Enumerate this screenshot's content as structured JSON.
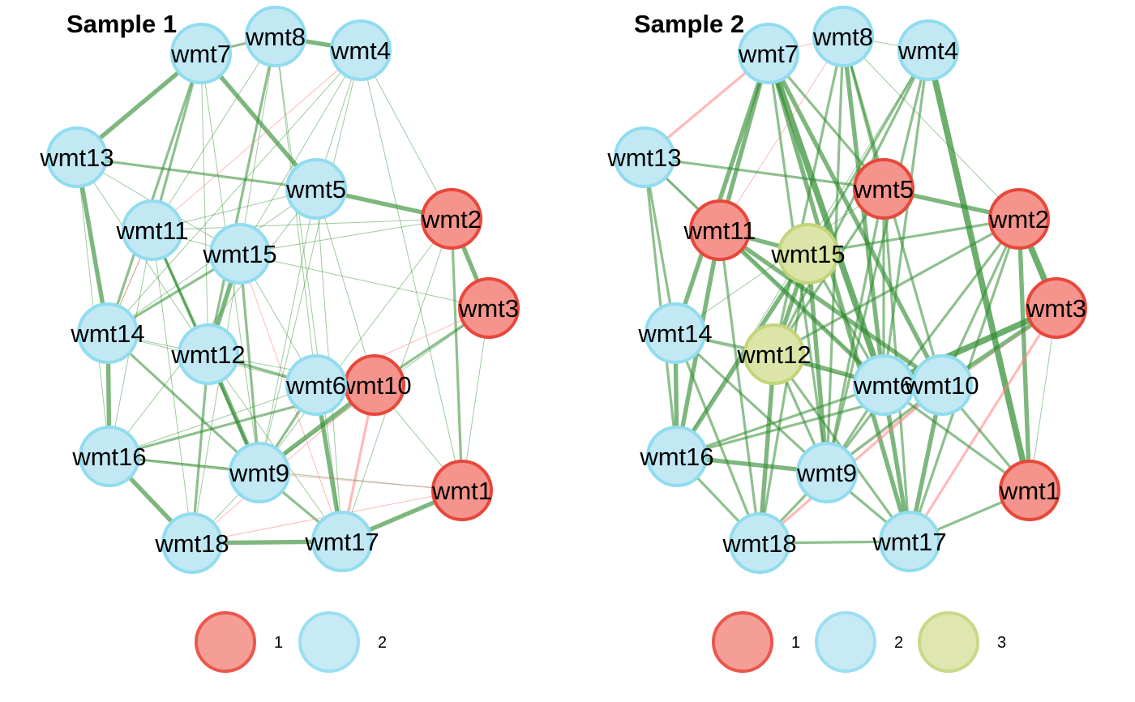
{
  "colors": {
    "group1_fill": "#F4948C",
    "group1_stroke": "#E8473A",
    "group2_fill": "#C2E8F4",
    "group2_stroke": "#91DCEF",
    "group3_fill": "#DCE4A8",
    "group3_stroke": "#C3D57A",
    "edge_positive": "#2E8B2E",
    "edge_negative": "#FF7F7F"
  },
  "panels": [
    {
      "title": "Sample 1",
      "groups": {
        "wmt1": "1",
        "wmt2": "1",
        "wmt3": "1",
        "wmt10": "1",
        "wmt4": "2",
        "wmt5": "2",
        "wmt6": "2",
        "wmt7": "2",
        "wmt8": "2",
        "wmt9": "2",
        "wmt11": "2",
        "wmt12": "2",
        "wmt13": "2",
        "wmt14": "2",
        "wmt15": "2",
        "wmt16": "2",
        "wmt17": "2",
        "wmt18": "2"
      },
      "edges": [
        [
          "wmt7",
          "wmt13",
          "pos",
          3
        ],
        [
          "wmt7",
          "wmt8",
          "pos",
          2
        ],
        [
          "wmt8",
          "wmt4",
          "pos",
          3
        ],
        [
          "wmt7",
          "wmt5",
          "pos",
          3
        ],
        [
          "wmt7",
          "wmt11",
          "pos",
          2
        ],
        [
          "wmt7",
          "wmt14",
          "pos",
          2
        ],
        [
          "wmt7",
          "wmt12",
          "pos",
          1
        ],
        [
          "wmt7",
          "wmt9",
          "pos",
          1
        ],
        [
          "wmt8",
          "wmt11",
          "pos",
          1
        ],
        [
          "wmt8",
          "wmt15",
          "pos",
          1
        ],
        [
          "wmt8",
          "wmt12",
          "pos",
          2
        ],
        [
          "wmt8",
          "wmt6",
          "pos",
          1
        ],
        [
          "wmt8",
          "wmt17",
          "pos",
          1
        ],
        [
          "wmt4",
          "wmt15",
          "pos",
          1
        ],
        [
          "wmt4",
          "wmt2",
          "pos",
          1
        ],
        [
          "wmt4",
          "wmt5",
          "pos",
          1
        ],
        [
          "wmt4",
          "wmt9",
          "pos",
          1
        ],
        [
          "wmt4",
          "wmt1",
          "pos",
          1
        ],
        [
          "wmt4",
          "wmt14",
          "pos",
          1
        ],
        [
          "wmt4",
          "wmt11",
          "neg",
          1
        ],
        [
          "wmt13",
          "wmt14",
          "pos",
          3
        ],
        [
          "wmt13",
          "wmt5",
          "pos",
          2
        ],
        [
          "wmt13",
          "wmt16",
          "pos",
          1
        ],
        [
          "wmt13",
          "wmt12",
          "pos",
          1
        ],
        [
          "wmt13",
          "wmt15",
          "pos",
          1
        ],
        [
          "wmt5",
          "wmt2",
          "pos",
          3
        ],
        [
          "wmt5",
          "wmt11",
          "pos",
          1
        ],
        [
          "wmt5",
          "wmt14",
          "pos",
          1
        ],
        [
          "wmt5",
          "wmt9",
          "pos",
          1
        ],
        [
          "wmt5",
          "wmt17",
          "pos",
          1
        ],
        [
          "wmt5",
          "wmt10",
          "pos",
          1
        ],
        [
          "wmt5",
          "wmt16",
          "pos",
          1
        ],
        [
          "wmt2",
          "wmt3",
          "pos",
          3
        ],
        [
          "wmt2",
          "wmt1",
          "pos",
          2
        ],
        [
          "wmt2",
          "wmt15",
          "pos",
          1
        ],
        [
          "wmt2",
          "wmt11",
          "pos",
          1
        ],
        [
          "wmt2",
          "wmt9",
          "pos",
          1
        ],
        [
          "wmt2",
          "wmt17",
          "pos",
          1
        ],
        [
          "wmt11",
          "wmt14",
          "pos",
          1
        ],
        [
          "wmt11",
          "wmt12",
          "pos",
          2
        ],
        [
          "wmt11",
          "wmt9",
          "pos",
          2
        ],
        [
          "wmt11",
          "wmt18",
          "pos",
          1
        ],
        [
          "wmt11",
          "wmt16",
          "pos",
          1
        ],
        [
          "wmt11",
          "wmt15",
          "pos",
          1
        ],
        [
          "wmt15",
          "wmt12",
          "pos",
          3
        ],
        [
          "wmt15",
          "wmt9",
          "pos",
          2
        ],
        [
          "wmt15",
          "wmt14",
          "pos",
          2
        ],
        [
          "wmt15",
          "wmt6",
          "pos",
          1
        ],
        [
          "wmt15",
          "wmt18",
          "pos",
          1
        ],
        [
          "wmt15",
          "wmt17",
          "neg",
          1
        ],
        [
          "wmt15",
          "wmt3",
          "pos",
          1
        ],
        [
          "wmt3",
          "wmt10",
          "pos",
          2
        ],
        [
          "wmt3",
          "wmt1",
          "pos",
          1
        ],
        [
          "wmt3",
          "wmt9",
          "pos",
          1
        ],
        [
          "wmt3",
          "wmt6",
          "neg",
          1
        ],
        [
          "wmt14",
          "wmt12",
          "pos",
          1
        ],
        [
          "wmt14",
          "wmt16",
          "pos",
          3
        ],
        [
          "wmt14",
          "wmt9",
          "pos",
          2
        ],
        [
          "wmt14",
          "wmt6",
          "pos",
          1
        ],
        [
          "wmt14",
          "wmt11",
          "neg",
          1
        ],
        [
          "wmt12",
          "wmt6",
          "pos",
          2
        ],
        [
          "wmt12",
          "wmt9",
          "pos",
          3
        ],
        [
          "wmt12",
          "wmt18",
          "pos",
          2
        ],
        [
          "wmt12",
          "wmt17",
          "pos",
          1
        ],
        [
          "wmt12",
          "wmt10",
          "pos",
          1
        ],
        [
          "wmt6",
          "wmt10",
          "pos",
          3
        ],
        [
          "wmt6",
          "wmt17",
          "pos",
          3
        ],
        [
          "wmt6",
          "wmt9",
          "pos",
          2
        ],
        [
          "wmt6",
          "wmt16",
          "pos",
          1
        ],
        [
          "wmt10",
          "wmt9",
          "pos",
          3
        ],
        [
          "wmt10",
          "wmt17",
          "neg",
          2
        ],
        [
          "wmt10",
          "wmt1",
          "pos",
          1
        ],
        [
          "wmt10",
          "wmt16",
          "pos",
          2
        ],
        [
          "wmt10",
          "wmt18",
          "neg",
          1
        ],
        [
          "wmt16",
          "wmt9",
          "pos",
          2
        ],
        [
          "wmt16",
          "wmt18",
          "pos",
          3
        ],
        [
          "wmt9",
          "wmt17",
          "pos",
          2
        ],
        [
          "wmt9",
          "wmt18",
          "pos",
          1
        ],
        [
          "wmt18",
          "wmt17",
          "pos",
          3
        ],
        [
          "wmt17",
          "wmt1",
          "pos",
          3
        ],
        [
          "wmt18",
          "wmt1",
          "neg",
          1
        ],
        [
          "wmt16",
          "wmt1",
          "pos",
          1
        ],
        [
          "wmt9",
          "wmt1",
          "neg",
          1
        ]
      ]
    },
    {
      "title": "Sample 2",
      "groups": {
        "wmt1": "1",
        "wmt2": "1",
        "wmt3": "1",
        "wmt5": "1",
        "wmt11": "1",
        "wmt4": "2",
        "wmt6": "2",
        "wmt7": "2",
        "wmt8": "2",
        "wmt9": "2",
        "wmt10": "2",
        "wmt13": "2",
        "wmt14": "2",
        "wmt16": "2",
        "wmt17": "2",
        "wmt18": "2",
        "wmt12": "3",
        "wmt15": "3"
      },
      "edges": [
        [
          "wmt7",
          "wmt13",
          "neg",
          2
        ],
        [
          "wmt7",
          "wmt8",
          "neg",
          1
        ],
        [
          "wmt8",
          "wmt4",
          "pos",
          1
        ],
        [
          "wmt7",
          "wmt11",
          "pos",
          3
        ],
        [
          "wmt7",
          "wmt14",
          "pos",
          3
        ],
        [
          "wmt7",
          "wmt6",
          "pos",
          4
        ],
        [
          "wmt7",
          "wmt17",
          "pos",
          3
        ],
        [
          "wmt7",
          "wmt10",
          "pos",
          3
        ],
        [
          "wmt7",
          "wmt5",
          "pos",
          2
        ],
        [
          "wmt7",
          "wmt9",
          "pos",
          2
        ],
        [
          "wmt8",
          "wmt5",
          "pos",
          2
        ],
        [
          "wmt8",
          "wmt6",
          "pos",
          3
        ],
        [
          "wmt8",
          "wmt10",
          "pos",
          2
        ],
        [
          "wmt8",
          "wmt2",
          "pos",
          1
        ],
        [
          "wmt8",
          "wmt11",
          "neg",
          1
        ],
        [
          "wmt8",
          "wmt9",
          "pos",
          2
        ],
        [
          "wmt8",
          "wmt12",
          "pos",
          2
        ],
        [
          "wmt4",
          "wmt1",
          "pos",
          4
        ],
        [
          "wmt4",
          "wmt6",
          "pos",
          2
        ],
        [
          "wmt4",
          "wmt15",
          "pos",
          2
        ],
        [
          "wmt4",
          "wmt12",
          "pos",
          2
        ],
        [
          "wmt4",
          "wmt9",
          "pos",
          2
        ],
        [
          "wmt4",
          "wmt16",
          "pos",
          1
        ],
        [
          "wmt13",
          "wmt5",
          "pos",
          2
        ],
        [
          "wmt13",
          "wmt14",
          "pos",
          2
        ],
        [
          "wmt13",
          "wmt11",
          "pos",
          2
        ],
        [
          "wmt13",
          "wmt16",
          "pos",
          2
        ],
        [
          "wmt13",
          "wmt6",
          "pos",
          1
        ],
        [
          "wmt5",
          "wmt2",
          "pos",
          3
        ],
        [
          "wmt5",
          "wmt6",
          "pos",
          2
        ],
        [
          "wmt5",
          "wmt12",
          "pos",
          2
        ],
        [
          "wmt5",
          "wmt9",
          "pos",
          2
        ],
        [
          "wmt5",
          "wmt17",
          "pos",
          2
        ],
        [
          "wmt5",
          "wmt14",
          "pos",
          1
        ],
        [
          "wmt11",
          "wmt15",
          "pos",
          3
        ],
        [
          "wmt11",
          "wmt16",
          "pos",
          3
        ],
        [
          "wmt11",
          "wmt6",
          "pos",
          3
        ],
        [
          "wmt11",
          "wmt10",
          "pos",
          3
        ],
        [
          "wmt11",
          "wmt18",
          "pos",
          2
        ],
        [
          "wmt15",
          "wmt12",
          "pos",
          3
        ],
        [
          "wmt15",
          "wmt9",
          "pos",
          3
        ],
        [
          "wmt15",
          "wmt16",
          "pos",
          3
        ],
        [
          "wmt15",
          "wmt2",
          "pos",
          2
        ],
        [
          "wmt15",
          "wmt6",
          "pos",
          2
        ],
        [
          "wmt15",
          "wmt18",
          "pos",
          2
        ],
        [
          "wmt2",
          "wmt3",
          "pos",
          4
        ],
        [
          "wmt2",
          "wmt1",
          "pos",
          3
        ],
        [
          "wmt2",
          "wmt12",
          "pos",
          2
        ],
        [
          "wmt2",
          "wmt10",
          "pos",
          2
        ],
        [
          "wmt2",
          "wmt9",
          "pos",
          2
        ],
        [
          "wmt2",
          "wmt17",
          "pos",
          2
        ],
        [
          "wmt3",
          "wmt6",
          "pos",
          4
        ],
        [
          "wmt3",
          "wmt10",
          "pos",
          3
        ],
        [
          "wmt3",
          "wmt17",
          "neg",
          2
        ],
        [
          "wmt3",
          "wmt1",
          "pos",
          1
        ],
        [
          "wmt3",
          "wmt9",
          "neg",
          1
        ],
        [
          "wmt14",
          "wmt12",
          "pos",
          2
        ],
        [
          "wmt14",
          "wmt16",
          "pos",
          3
        ],
        [
          "wmt14",
          "wmt9",
          "pos",
          2
        ],
        [
          "wmt14",
          "wmt18",
          "pos",
          2
        ],
        [
          "wmt14",
          "wmt6",
          "pos",
          1
        ],
        [
          "wmt12",
          "wmt6",
          "pos",
          3
        ],
        [
          "wmt12",
          "wmt18",
          "pos",
          3
        ],
        [
          "wmt12",
          "wmt9",
          "pos",
          2
        ],
        [
          "wmt12",
          "wmt17",
          "pos",
          2
        ],
        [
          "wmt6",
          "wmt10",
          "pos",
          3
        ],
        [
          "wmt6",
          "wmt17",
          "pos",
          3
        ],
        [
          "wmt6",
          "wmt9",
          "pos",
          2
        ],
        [
          "wmt6",
          "wmt16",
          "pos",
          2
        ],
        [
          "wmt10",
          "wmt17",
          "pos",
          3
        ],
        [
          "wmt10",
          "wmt9",
          "pos",
          2
        ],
        [
          "wmt10",
          "wmt16",
          "pos",
          2
        ],
        [
          "wmt10",
          "wmt1",
          "pos",
          2
        ],
        [
          "wmt10",
          "wmt18",
          "neg",
          2
        ],
        [
          "wmt16",
          "wmt9",
          "pos",
          3
        ],
        [
          "wmt16",
          "wmt18",
          "pos",
          2
        ],
        [
          "wmt9",
          "wmt18",
          "pos",
          2
        ],
        [
          "wmt9",
          "wmt17",
          "pos",
          2
        ],
        [
          "wmt18",
          "wmt17",
          "pos",
          2
        ],
        [
          "wmt17",
          "wmt1",
          "pos",
          2
        ],
        [
          "wmt6",
          "wmt1",
          "pos",
          2
        ]
      ]
    }
  ],
  "legends": [
    {
      "items": [
        {
          "label": "1",
          "group": "1"
        },
        {
          "label": "2",
          "group": "2"
        }
      ]
    },
    {
      "items": [
        {
          "label": "1",
          "group": "1"
        },
        {
          "label": "2",
          "group": "2"
        },
        {
          "label": "3",
          "group": "3"
        }
      ]
    }
  ]
}
